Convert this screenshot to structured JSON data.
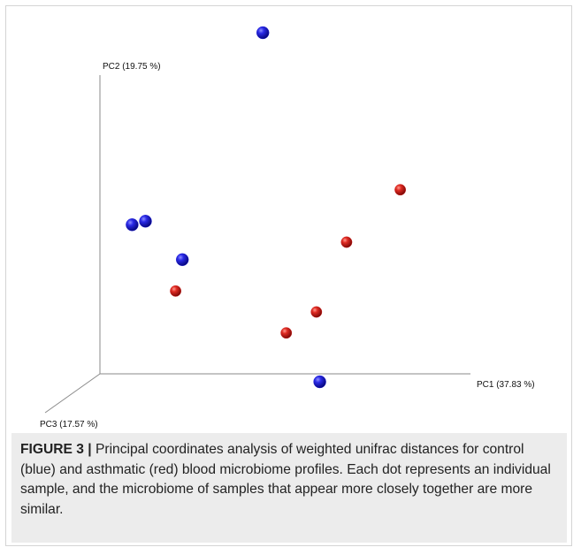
{
  "figure": {
    "caption_label": "FIGURE 3 |",
    "caption_text": "Principal coordinates analysis of weighted unifrac distances for control (blue) and asthmatic (red) blood microbiome profiles. Each dot represents an individual sample, and the microbiome of samples that appear more closely together are more similar."
  },
  "chart_data": {
    "type": "scatter",
    "axes": {
      "pc1": "PC1 (37.83 %)",
      "pc2": "PC2 (19.75 %)",
      "pc3": "PC3 (17.57 %)"
    },
    "colors": {
      "control": "#1515d8",
      "asthmatic": "#d41a16"
    },
    "series": [
      {
        "group": "control",
        "points": [
          {
            "pc1": 0.42,
            "pc2": 1.0
          },
          {
            "pc1": 0.03,
            "pc2": 0.45
          },
          {
            "pc1": 0.07,
            "pc2": 0.46
          },
          {
            "pc1": 0.18,
            "pc2": 0.35
          },
          {
            "pc1": 0.59,
            "pc2": 0.0
          }
        ]
      },
      {
        "group": "asthmatic",
        "points": [
          {
            "pc1": 0.83,
            "pc2": 0.55
          },
          {
            "pc1": 0.67,
            "pc2": 0.4
          },
          {
            "pc1": 0.16,
            "pc2": 0.26
          },
          {
            "pc1": 0.58,
            "pc2": 0.2
          },
          {
            "pc1": 0.49,
            "pc2": 0.14
          }
        ]
      }
    ]
  }
}
